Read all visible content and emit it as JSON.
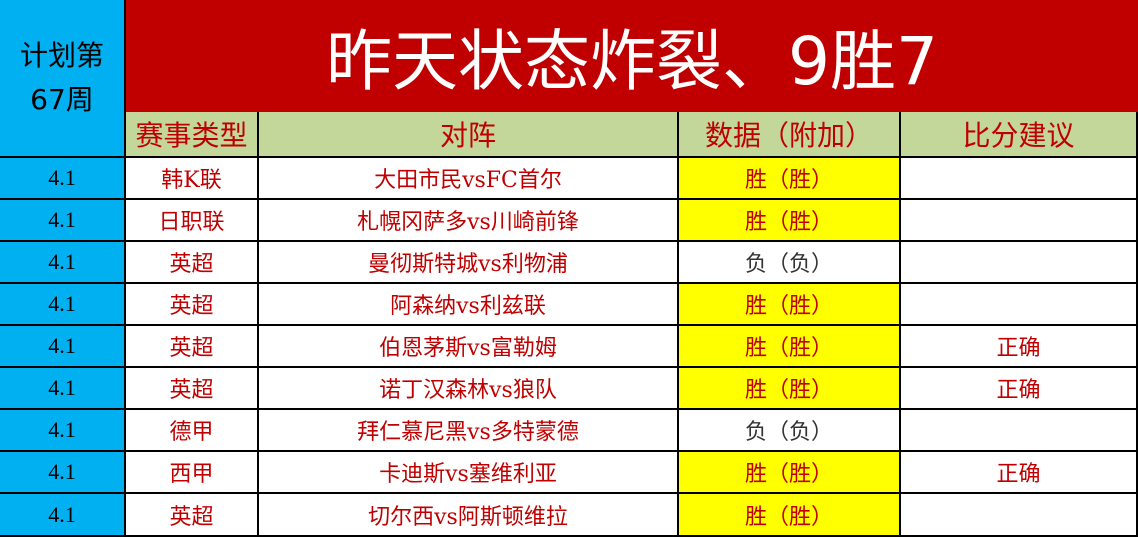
{
  "plan_label_line1": "计划第",
  "plan_label_line2": "67周",
  "title": "昨天状态炸裂、9胜7",
  "headers": [
    "赛事类型",
    "对阵",
    "数据（附加）",
    "比分建议"
  ],
  "colors": {
    "title_bg": "#c00000",
    "side_bg": "#00b0f0",
    "header_bg": "#c4d79b",
    "highlight": "#ffff00",
    "text": "#c00000"
  },
  "rows": [
    {
      "date": "4.1",
      "league": "韩K联",
      "match": "大田市民vsFC首尔",
      "data": "胜（胜）",
      "hit": true,
      "score": ""
    },
    {
      "date": "4.1",
      "league": "日职联",
      "match": "札幌冈萨多vs川崎前锋",
      "data": "胜（胜）",
      "hit": true,
      "score": ""
    },
    {
      "date": "4.1",
      "league": "英超",
      "match": "曼彻斯特城vs利物浦",
      "data": "负（负）",
      "hit": false,
      "score": ""
    },
    {
      "date": "4.1",
      "league": "英超",
      "match": "阿森纳vs利兹联",
      "data": "胜（胜）",
      "hit": true,
      "score": ""
    },
    {
      "date": "4.1",
      "league": "英超",
      "match": "伯恩茅斯vs富勒姆",
      "data": "胜（胜）",
      "hit": true,
      "score": "正确"
    },
    {
      "date": "4.1",
      "league": "英超",
      "match": "诺丁汉森林vs狼队",
      "data": "胜（胜）",
      "hit": true,
      "score": "正确"
    },
    {
      "date": "4.1",
      "league": "德甲",
      "match": "拜仁慕尼黑vs多特蒙德",
      "data": "负（负）",
      "hit": false,
      "score": ""
    },
    {
      "date": "4.1",
      "league": "西甲",
      "match": "卡迪斯vs塞维利亚",
      "data": "胜（胜）",
      "hit": true,
      "score": "正确"
    },
    {
      "date": "4.1",
      "league": "英超",
      "match": "切尔西vs阿斯顿维拉",
      "data": "胜（胜）",
      "hit": true,
      "score": ""
    }
  ]
}
